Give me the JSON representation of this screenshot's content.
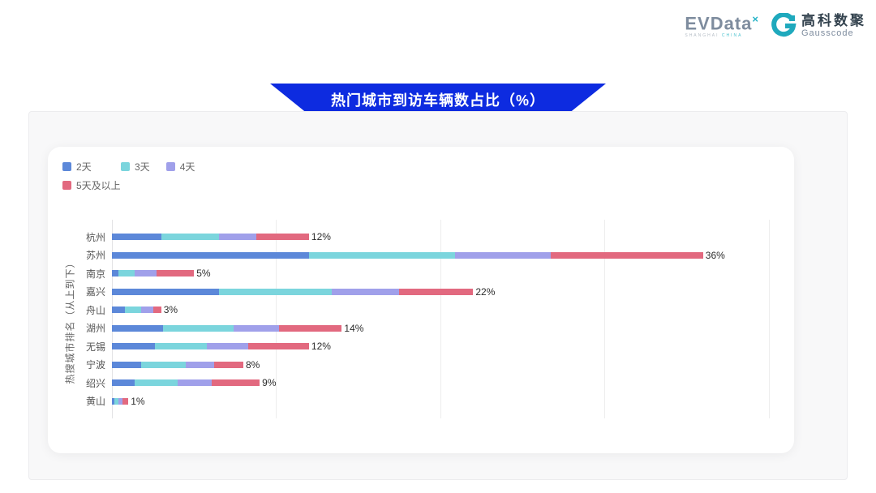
{
  "logo": {
    "evdata_text": "EVData",
    "evdata_sup": "×",
    "evdata_sub_left": "SHANGHAI",
    "evdata_sub_right": "CHINA",
    "gausscode_cn": "高科数聚",
    "gausscode_en": "Gausscode",
    "gausscode_color": "#1fa9bd"
  },
  "banner": {
    "title": "热门城市到访车辆数占比（%）",
    "color": "#0d2be0"
  },
  "chart_data": {
    "type": "bar",
    "orientation": "horizontal",
    "stacked": true,
    "title": "热门城市到访车辆数占比（%）",
    "ylabel": "热搜城市排名（从上到下）",
    "xlabel": "",
    "legend_position": "top-left",
    "grid": true,
    "xlim": [
      0,
      40.8
    ],
    "gridlines": [
      0,
      10,
      20,
      30,
      40
    ],
    "categories": [
      "杭州",
      "苏州",
      "南京",
      "嘉兴",
      "舟山",
      "湖州",
      "无锡",
      "宁波",
      "绍兴",
      "黄山"
    ],
    "series": [
      {
        "name": "2天",
        "color": "#5c88d9",
        "values": [
          3.0,
          12.0,
          0.4,
          6.5,
          0.8,
          3.1,
          2.6,
          1.8,
          1.4,
          0.15
        ]
      },
      {
        "name": "3天",
        "color": "#7bd5dd",
        "values": [
          3.5,
          8.9,
          1.0,
          6.9,
          1.0,
          4.3,
          3.2,
          2.7,
          2.6,
          0.25
        ]
      },
      {
        "name": "4天",
        "color": "#a0a0ea",
        "values": [
          2.3,
          5.8,
          1.3,
          4.1,
          0.7,
          2.8,
          2.5,
          1.7,
          2.1,
          0.25
        ]
      },
      {
        "name": "5天及以上",
        "color": "#e2697f",
        "values": [
          3.2,
          9.3,
          2.3,
          4.5,
          0.5,
          3.8,
          3.7,
          1.8,
          2.9,
          0.35
        ]
      }
    ],
    "totals_labels": [
      "12%",
      "36%",
      "5%",
      "22%",
      "3%",
      "14%",
      "12%",
      "8%",
      "9%",
      "1%"
    ]
  }
}
